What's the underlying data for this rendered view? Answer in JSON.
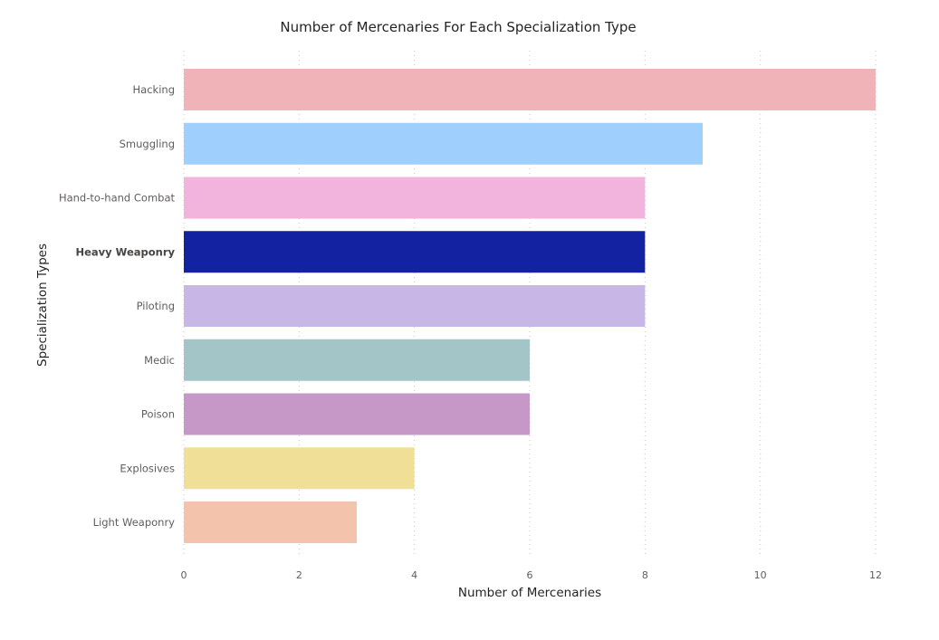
{
  "chart_data": {
    "type": "bar",
    "orientation": "horizontal",
    "title": "Number of Mercenaries For Each Specialization Type",
    "xlabel": "Number of Mercenaries",
    "ylabel": "Specialization Types",
    "xlim": [
      0,
      12
    ],
    "xticks": [
      "0",
      "2",
      "4",
      "6",
      "8",
      "10",
      "12"
    ],
    "grid": true,
    "highlighted_category": "Heavy Weaponry",
    "categories": [
      "Hacking",
      "Smuggling",
      "Hand-to-hand Combat",
      "Heavy Weaponry",
      "Piloting",
      "Medic",
      "Poison",
      "Explosives",
      "Light Weaponry"
    ],
    "values": [
      12,
      9,
      8,
      8,
      8,
      6,
      6,
      4,
      3
    ],
    "colors": [
      "#f0b4b8",
      "#9fcffd",
      "#f2b3dc",
      "#1222a0",
      "#c8b6e6",
      "#a3c5c7",
      "#c598c8",
      "#f0df96",
      "#f4c3ac"
    ]
  }
}
